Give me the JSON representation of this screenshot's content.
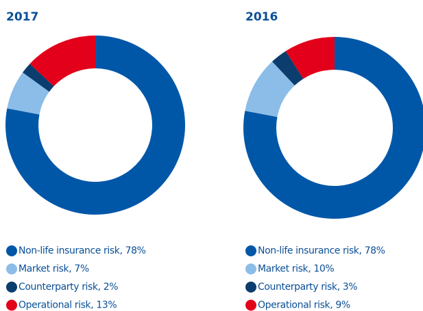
{
  "chart_data": [
    {
      "type": "donut",
      "title": "2017",
      "categories": [
        "Non-life insurance risk, 78%",
        "Market risk, 7%",
        "Counterparty risk, 2%",
        "Operational risk, 13%"
      ],
      "values": [
        78,
        7,
        2,
        13
      ],
      "colors": [
        "#0057a8",
        "#8bbde8",
        "#0b3d6e",
        "#e2001a"
      ]
    },
    {
      "type": "donut",
      "title": "2016",
      "categories": [
        "Non-life insurance risk, 78%",
        "Market risk, 10%",
        "Counterparty risk, 3%",
        "Operational risk, 9%"
      ],
      "values": [
        78,
        10,
        3,
        9
      ],
      "colors": [
        "#0057a8",
        "#8bbde8",
        "#0b3d6e",
        "#e2001a"
      ]
    }
  ]
}
